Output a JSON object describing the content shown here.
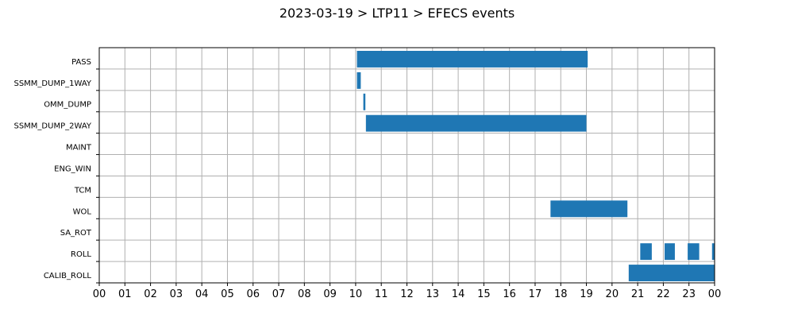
{
  "chart_data": {
    "type": "gantt",
    "title": "2023-03-19 > LTP11 > EFECS events",
    "x_range_hours": [
      0,
      24
    ],
    "x_tick_labels": [
      "00",
      "01",
      "02",
      "03",
      "04",
      "05",
      "06",
      "07",
      "08",
      "09",
      "10",
      "11",
      "12",
      "13",
      "14",
      "15",
      "16",
      "17",
      "18",
      "19",
      "20",
      "21",
      "22",
      "23",
      "00"
    ],
    "grid": true,
    "bar_color": "#1f77b4",
    "categories": [
      "PASS",
      "SSMM_DUMP_1WAY",
      "OMM_DUMP",
      "SSMM_DUMP_2WAY",
      "MAINT",
      "ENG_WIN",
      "TCM",
      "WOL",
      "SA_ROT",
      "ROLL",
      "CALIB_ROLL"
    ],
    "events": [
      {
        "category": "PASS",
        "start": 10.05,
        "end": 19.05
      },
      {
        "category": "SSMM_DUMP_1WAY",
        "start": 10.05,
        "end": 10.2
      },
      {
        "category": "OMM_DUMP",
        "start": 10.3,
        "end": 10.38
      },
      {
        "category": "SSMM_DUMP_2WAY",
        "start": 10.4,
        "end": 19.0
      },
      {
        "category": "WOL",
        "start": 17.6,
        "end": 20.6
      },
      {
        "category": "ROLL",
        "start": 21.1,
        "end": 21.55
      },
      {
        "category": "ROLL",
        "start": 22.05,
        "end": 22.45
      },
      {
        "category": "ROLL",
        "start": 22.95,
        "end": 23.4
      },
      {
        "category": "ROLL",
        "start": 23.9,
        "end": 24.0
      },
      {
        "category": "CALIB_ROLL",
        "start": 20.65,
        "end": 24.0
      }
    ]
  }
}
